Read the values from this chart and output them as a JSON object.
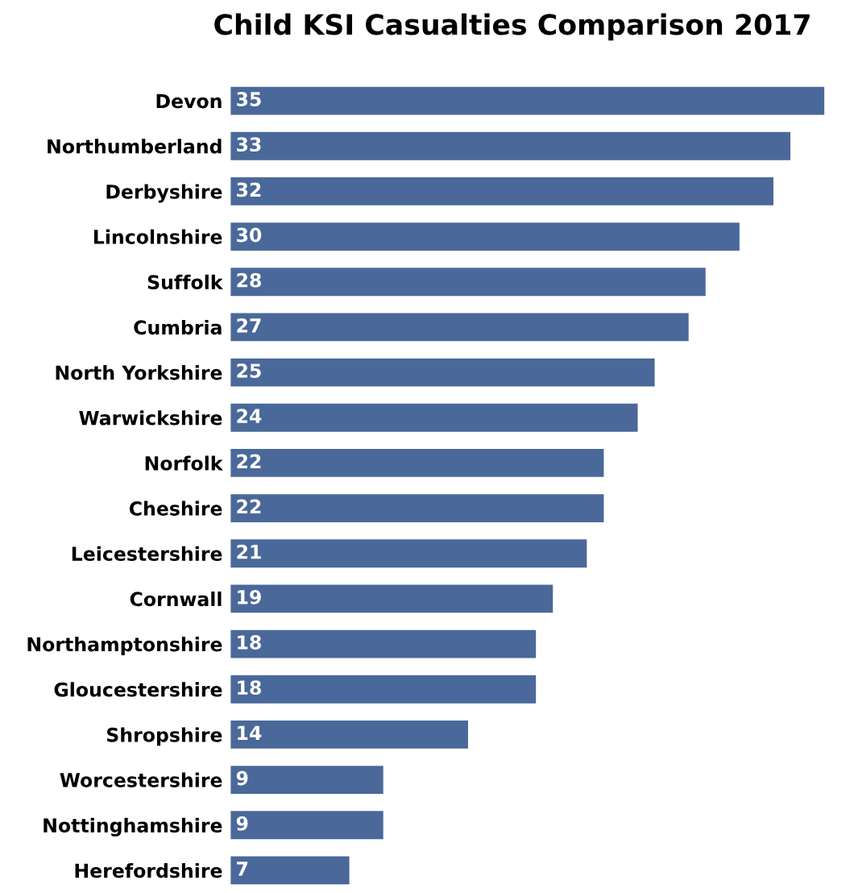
{
  "chart_data": {
    "type": "bar",
    "orientation": "horizontal",
    "title": "Child KSI Casualties Comparison 2017",
    "categories": [
      "Devon",
      "Northumberland",
      "Derbyshire",
      "Lincolnshire",
      "Suffolk",
      "Cumbria",
      "North Yorkshire",
      "Warwickshire",
      "Norfolk",
      "Cheshire",
      "Leicestershire",
      "Cornwall",
      "Northamptonshire",
      "Gloucestershire",
      "Shropshire",
      "Worcestershire",
      "Nottinghamshire",
      "Herefordshire"
    ],
    "values": [
      35,
      33,
      32,
      30,
      28,
      27,
      25,
      24,
      22,
      22,
      21,
      19,
      18,
      18,
      14,
      9,
      9,
      7
    ],
    "color": "#4a6899",
    "data_labels": true,
    "grid": false,
    "legend": false
  }
}
